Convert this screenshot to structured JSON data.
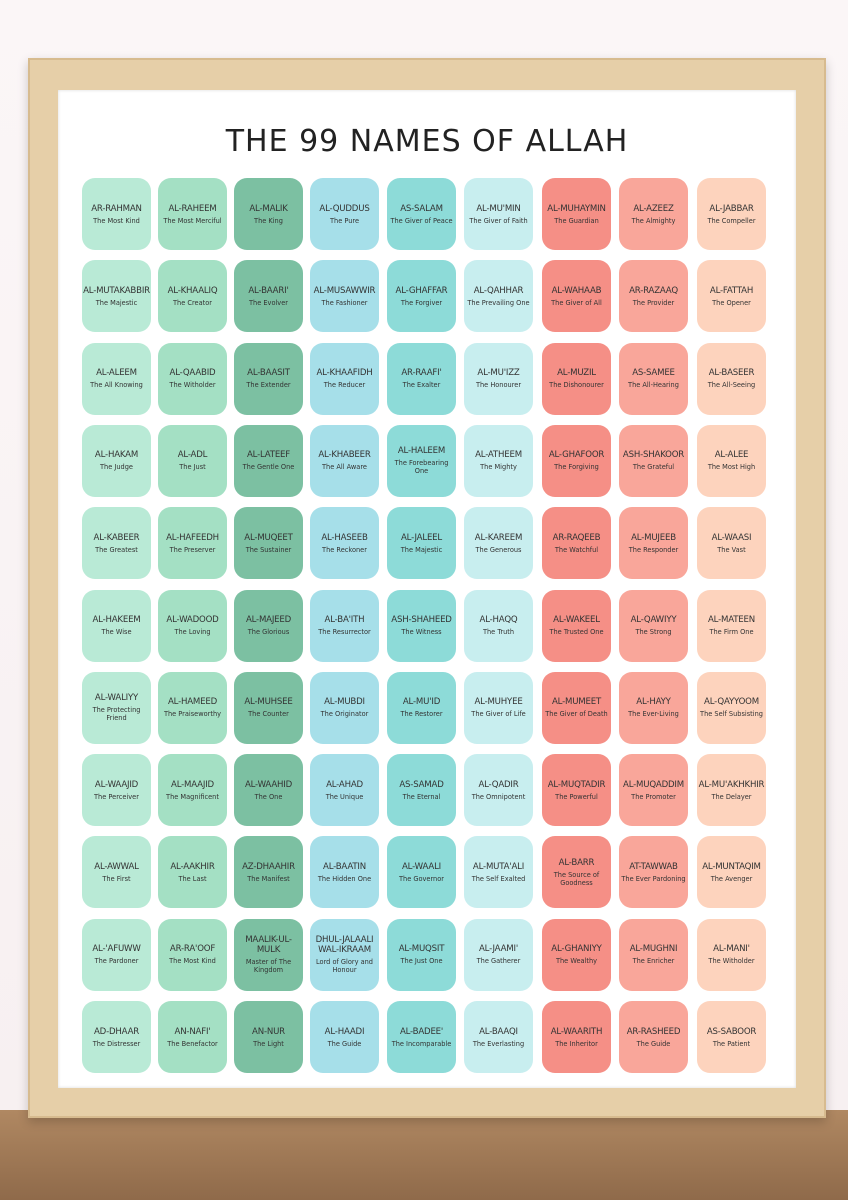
{
  "title": "THE 99 NAMES OF ALLAH",
  "grid": {
    "rows": [
      [
        {
          "name": "AR-RAHMAN",
          "meaning": "The Most Kind"
        },
        {
          "name": "AL-RAHEEM",
          "meaning": "The Most Merciful"
        },
        {
          "name": "AL-MALIK",
          "meaning": "The King"
        },
        {
          "name": "AL-QUDDUS",
          "meaning": "The Pure"
        },
        {
          "name": "AS-SALAM",
          "meaning": "The Giver of Peace"
        },
        {
          "name": "AL-MU'MIN",
          "meaning": "The Giver of Faith"
        },
        {
          "name": "AL-MUHAYMIN",
          "meaning": "The Guardian"
        },
        {
          "name": "AL-AZEEZ",
          "meaning": "The Almighty"
        },
        {
          "name": "AL-JABBAR",
          "meaning": "The Compeller"
        }
      ],
      [
        {
          "name": "AL-MUTAKABBIR",
          "meaning": "The Majestic"
        },
        {
          "name": "AL-KHAALIQ",
          "meaning": "The Creator"
        },
        {
          "name": "AL-BAARI'",
          "meaning": "The Evolver"
        },
        {
          "name": "AL-MUSAWWIR",
          "meaning": "The Fashioner"
        },
        {
          "name": "AL-GHAFFAR",
          "meaning": "The Forgiver"
        },
        {
          "name": "AL-QAHHAR",
          "meaning": "The Prevailing One"
        },
        {
          "name": "AL-WAHAAB",
          "meaning": "The Giver of All"
        },
        {
          "name": "AR-RAZAAQ",
          "meaning": "The Provider"
        },
        {
          "name": "AL-FATTAH",
          "meaning": "The Opener"
        }
      ],
      [
        {
          "name": "AL-ALEEM",
          "meaning": "The All Knowing"
        },
        {
          "name": "AL-QAABID",
          "meaning": "The Witholder"
        },
        {
          "name": "AL-BAASIT",
          "meaning": "The Extender"
        },
        {
          "name": "AL-KHAAFIDH",
          "meaning": "The Reducer"
        },
        {
          "name": "AR-RAAFI'",
          "meaning": "The Exalter"
        },
        {
          "name": "AL-MU'IZZ",
          "meaning": "The Honourer"
        },
        {
          "name": "AL-MUZIL",
          "meaning": "The Dishonourer"
        },
        {
          "name": "AS-SAMEE",
          "meaning": "The All-Hearing"
        },
        {
          "name": "AL-BASEER",
          "meaning": "The All-Seeing"
        }
      ],
      [
        {
          "name": "AL-HAKAM",
          "meaning": "The Judge"
        },
        {
          "name": "AL-ADL",
          "meaning": "The Just"
        },
        {
          "name": "AL-LATEEF",
          "meaning": "The Gentle One"
        },
        {
          "name": "AL-KHABEER",
          "meaning": "The All Aware"
        },
        {
          "name": "AL-HALEEM",
          "meaning": "The Forebearing One"
        },
        {
          "name": "AL-ATHEEM",
          "meaning": "The Mighty"
        },
        {
          "name": "AL-GHAFOOR",
          "meaning": "The Forgiving"
        },
        {
          "name": "ASH-SHAKOOR",
          "meaning": "The Grateful"
        },
        {
          "name": "AL-ALEE",
          "meaning": "The Most High"
        }
      ],
      [
        {
          "name": "AL-KABEER",
          "meaning": "The Greatest"
        },
        {
          "name": "AL-HAFEEDH",
          "meaning": "The Preserver"
        },
        {
          "name": "AL-MUQEET",
          "meaning": "The Sustainer"
        },
        {
          "name": "AL-HASEEB",
          "meaning": "The Reckoner"
        },
        {
          "name": "AL-JALEEL",
          "meaning": "The Majestic"
        },
        {
          "name": "AL-KAREEM",
          "meaning": "The Generous"
        },
        {
          "name": "AR-RAQEEB",
          "meaning": "The Watchful"
        },
        {
          "name": "AL-MUJEEB",
          "meaning": "The Responder"
        },
        {
          "name": "AL-WAASI",
          "meaning": "The Vast"
        }
      ],
      [
        {
          "name": "AL-HAKEEM",
          "meaning": "The Wise"
        },
        {
          "name": "AL-WADOOD",
          "meaning": "The Loving"
        },
        {
          "name": "AL-MAJEED",
          "meaning": "The Glorious"
        },
        {
          "name": "AL-BA'ITH",
          "meaning": "The Resurrector"
        },
        {
          "name": "ASH-SHAHEED",
          "meaning": "The Witness"
        },
        {
          "name": "AL-HAQQ",
          "meaning": "The Truth"
        },
        {
          "name": "AL-WAKEEL",
          "meaning": "The Trusted One"
        },
        {
          "name": "AL-QAWIYY",
          "meaning": "The Strong"
        },
        {
          "name": "AL-MATEEN",
          "meaning": "The Firm One"
        }
      ],
      [
        {
          "name": "AL-WALIYY",
          "meaning": "The Protecting Friend"
        },
        {
          "name": "AL-HAMEED",
          "meaning": "The Praiseworthy"
        },
        {
          "name": "AL-MUHSEE",
          "meaning": "The Counter"
        },
        {
          "name": "AL-MUBDI",
          "meaning": "The Originator"
        },
        {
          "name": "AL-MU'ID",
          "meaning": "The Restorer"
        },
        {
          "name": "AL-MUHYEE",
          "meaning": "The Giver of Life"
        },
        {
          "name": "AL-MUMEET",
          "meaning": "The Giver of Death"
        },
        {
          "name": "AL-HAYY",
          "meaning": "The Ever-Living"
        },
        {
          "name": "AL-QAYYOOM",
          "meaning": "The Self Subsisting"
        }
      ],
      [
        {
          "name": "AL-WAAJID",
          "meaning": "The Perceiver"
        },
        {
          "name": "AL-MAAJID",
          "meaning": "The Magnificent"
        },
        {
          "name": "AL-WAAHID",
          "meaning": "The One"
        },
        {
          "name": "AL-AHAD",
          "meaning": "The Unique"
        },
        {
          "name": "AS-SAMAD",
          "meaning": "The Eternal"
        },
        {
          "name": "AL-QADIR",
          "meaning": "The Omnipotent"
        },
        {
          "name": "AL-MUQTADIR",
          "meaning": "The Powerful"
        },
        {
          "name": "AL-MUQADDIM",
          "meaning": "The Promoter"
        },
        {
          "name": "AL-MU'AKHKHIR",
          "meaning": "The Delayer"
        }
      ],
      [
        {
          "name": "AL-AWWAL",
          "meaning": "The First"
        },
        {
          "name": "AL-AAKHIR",
          "meaning": "The Last"
        },
        {
          "name": "AZ-DHAAHIR",
          "meaning": "The Manifest"
        },
        {
          "name": "AL-BAATIN",
          "meaning": "The Hidden One"
        },
        {
          "name": "AL-WAALI",
          "meaning": "The Governor"
        },
        {
          "name": "AL-MUTA'ALI",
          "meaning": "The Self Exalted"
        },
        {
          "name": "AL-BARR",
          "meaning": "The Source of Goodness"
        },
        {
          "name": "AT-TAWWAB",
          "meaning": "The Ever Pardoning"
        },
        {
          "name": "AL-MUNTAQIM",
          "meaning": "The Avenger"
        }
      ],
      [
        {
          "name": "AL-'AFUWW",
          "meaning": "The Pardoner"
        },
        {
          "name": "AR-RA'OOF",
          "meaning": "The Most Kind"
        },
        {
          "name": "MAALIK-UL-MULK",
          "meaning": "Master of The Kingdom"
        },
        {
          "name": "DHUL-JALAALI WAL-IKRAAM",
          "meaning": "Lord of Glory and Honour"
        },
        {
          "name": "AL-MUQSIT",
          "meaning": "The Just One"
        },
        {
          "name": "AL-JAAMI'",
          "meaning": "The Gatherer"
        },
        {
          "name": "AL-GHANIYY",
          "meaning": "The Wealthy"
        },
        {
          "name": "AL-MUGHNI",
          "meaning": "The Enricher"
        },
        {
          "name": "AL-MANI'",
          "meaning": "The Witholder"
        }
      ],
      [
        {
          "name": "AD-DHAAR",
          "meaning": "The Distresser"
        },
        {
          "name": "AN-NAFI'",
          "meaning": "The Benefactor"
        },
        {
          "name": "AN-NUR",
          "meaning": "The Light"
        },
        {
          "name": "AL-HAADI",
          "meaning": "The Guide"
        },
        {
          "name": "AL-BADEE'",
          "meaning": "The Incomparable"
        },
        {
          "name": "AL-BAAQI",
          "meaning": "The Everlasting"
        },
        {
          "name": "AL-WAARITH",
          "meaning": "The Inheritor"
        },
        {
          "name": "AR-RASHEED",
          "meaning": "The Guide"
        },
        {
          "name": "AS-SABOOR",
          "meaning": "The Patient"
        }
      ]
    ]
  }
}
